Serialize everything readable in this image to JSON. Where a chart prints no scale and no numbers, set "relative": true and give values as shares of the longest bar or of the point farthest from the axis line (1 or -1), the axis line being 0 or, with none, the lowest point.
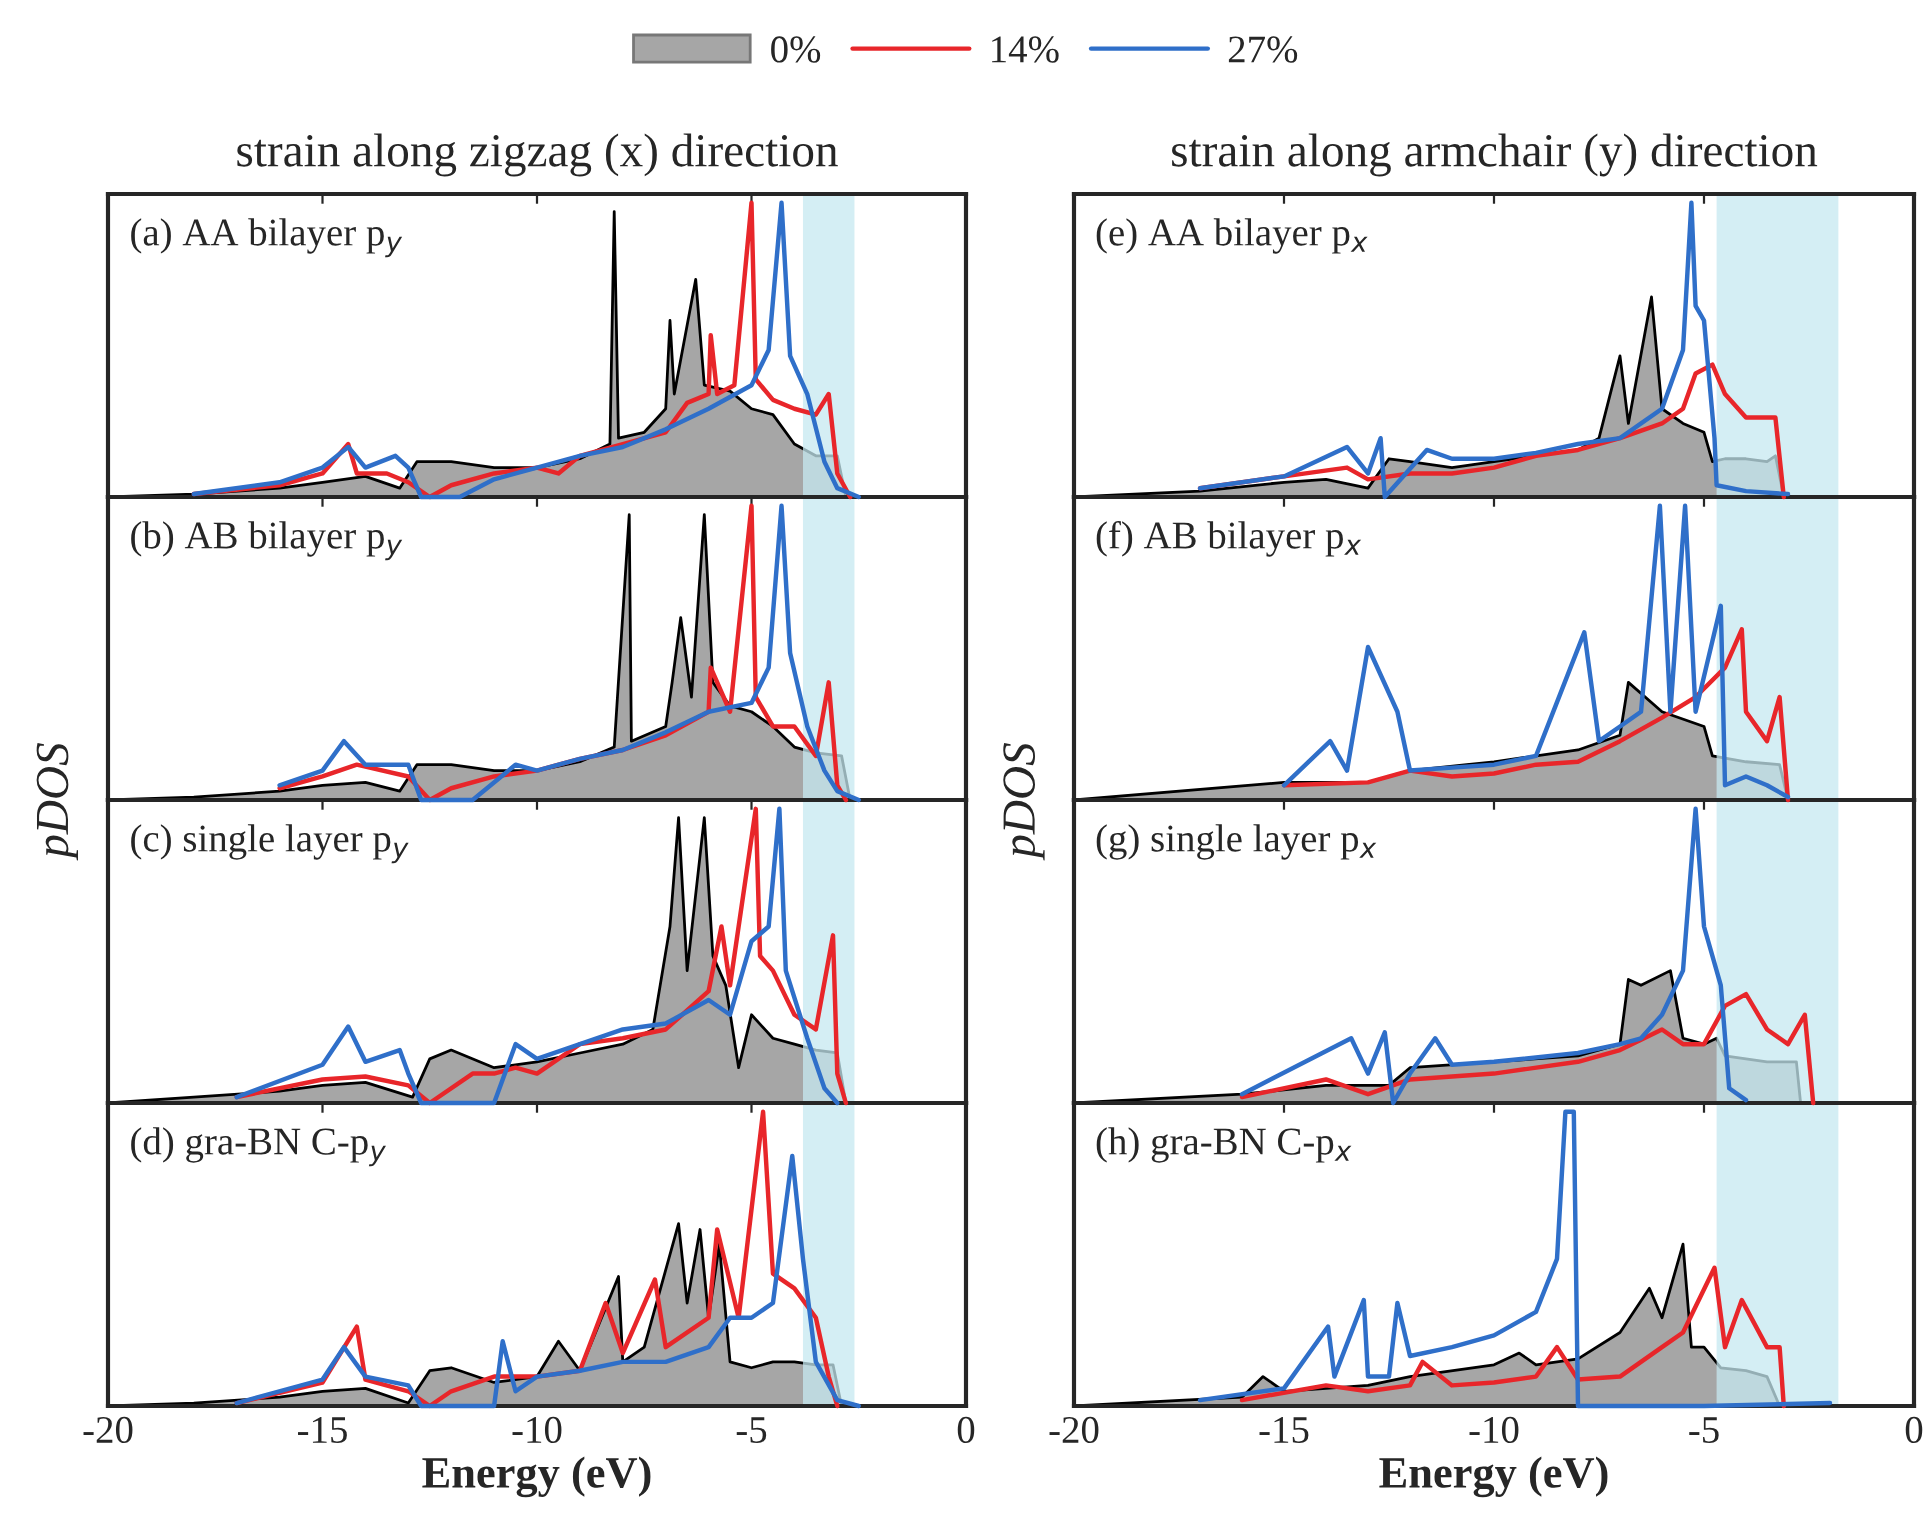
{
  "chart_data": [
    {
      "type": "line",
      "relative": true,
      "title": "strain along zigzag (x) direction",
      "annotations": [
        "(a) AA bilayer p$_{y}$"
      ],
      "xlim": [
        -20,
        0
      ],
      "xticks": [
        -20,
        -15,
        -10,
        -5,
        0
      ],
      "tick_labels": false,
      "legend": "top",
      "bands": [
        {
          "axis": "x",
          "from": -3.8,
          "to": -2.6,
          "color": "#c5e8f0"
        }
      ],
      "series": [
        {
          "name": "0%",
          "type": "area",
          "color": "#a6a6a6",
          "x": [
            -20,
            -18,
            -16,
            -15,
            -14,
            -13.2,
            -12.8,
            -12,
            -11,
            -10,
            -9,
            -8.3,
            -8.2,
            -8.1,
            -7.5,
            -7,
            -6.9,
            -6.8,
            -6.3,
            -6.1,
            -5.5,
            -5,
            -4.5,
            -4,
            -3.5,
            -3,
            -2.8,
            0
          ],
          "values": [
            0,
            0.01,
            0.03,
            0.05,
            0.07,
            0.03,
            0.12,
            0.12,
            0.1,
            0.1,
            0.13,
            0.18,
            0.97,
            0.2,
            0.22,
            0.3,
            0.6,
            0.35,
            0.74,
            0.38,
            0.36,
            0.3,
            0.28,
            0.18,
            0.14,
            0.14,
            0,
            0
          ]
        },
        {
          "name": "14%",
          "color": "#e8262a",
          "x": [
            -18,
            -16,
            -15,
            -14.4,
            -14.2,
            -13.5,
            -13,
            -12.5,
            -12,
            -11,
            -10,
            -9.5,
            -9,
            -8,
            -7,
            -6.5,
            -6,
            -5.95,
            -5.8,
            -5.4,
            -5,
            -4.9,
            -4.5,
            -4,
            -3.5,
            -3.2,
            -3,
            -2.7
          ],
          "values": [
            0.01,
            0.04,
            0.08,
            0.18,
            0.08,
            0.08,
            0.05,
            0,
            0.04,
            0.08,
            0.1,
            0.08,
            0.14,
            0.18,
            0.22,
            0.32,
            0.35,
            0.55,
            0.35,
            0.38,
            1.0,
            0.4,
            0.33,
            0.3,
            0.28,
            0.35,
            0.08,
            0
          ]
        },
        {
          "name": "27%",
          "color": "#2f6fc9",
          "x": [
            -18,
            -16,
            -15,
            -14.4,
            -14,
            -13.3,
            -13,
            -12.7,
            -11.8,
            -11,
            -10,
            -9,
            -8,
            -7,
            -6,
            -5,
            -4.6,
            -4.3,
            -4.1,
            -3.7,
            -3.3,
            -3,
            -2.5
          ],
          "values": [
            0.01,
            0.05,
            0.1,
            0.17,
            0.1,
            0.14,
            0.1,
            0,
            0,
            0.06,
            0.1,
            0.14,
            0.17,
            0.23,
            0.3,
            0.38,
            0.5,
            1.0,
            0.48,
            0.35,
            0.12,
            0.03,
            0
          ]
        }
      ]
    },
    {
      "type": "line",
      "relative": true,
      "ylabel": "pDOS",
      "annotations": [
        "(b) AB bilayer p$_{y}$"
      ],
      "xlim": [
        -20,
        0
      ],
      "xticks": [
        -20,
        -15,
        -10,
        -5,
        0
      ],
      "tick_labels": false,
      "bands": [
        {
          "axis": "x",
          "from": -3.8,
          "to": -2.6,
          "color": "#c5e8f0"
        }
      ],
      "series": [
        {
          "type": "area",
          "color": "#a6a6a6",
          "x": [
            -20,
            -18,
            -16,
            -15,
            -14,
            -13.2,
            -12.8,
            -12,
            -11,
            -10,
            -9,
            -8.2,
            -7.85,
            -7.8,
            -7,
            -6.85,
            -6.65,
            -6.4,
            -6.1,
            -5.9,
            -5.5,
            -5,
            -4.5,
            -4,
            -3.5,
            -2.9,
            -2.7,
            0
          ],
          "values": [
            0,
            0.01,
            0.03,
            0.05,
            0.06,
            0.03,
            0.12,
            0.12,
            0.1,
            0.1,
            0.13,
            0.18,
            0.97,
            0.2,
            0.25,
            0.4,
            0.62,
            0.35,
            0.97,
            0.4,
            0.32,
            0.3,
            0.25,
            0.18,
            0.16,
            0.15,
            0,
            0
          ]
        },
        {
          "color": "#e8262a",
          "x": [
            -16,
            -15,
            -14.2,
            -13,
            -12.5,
            -12,
            -11,
            -10,
            -9,
            -8,
            -7,
            -6,
            -5.95,
            -5.5,
            -5,
            -4.9,
            -4.5,
            -4,
            -3.5,
            -3.2,
            -3,
            -2.8
          ],
          "values": [
            0.04,
            0.08,
            0.12,
            0.08,
            0,
            0.04,
            0.08,
            0.1,
            0.14,
            0.17,
            0.22,
            0.3,
            0.45,
            0.3,
            1.0,
            0.35,
            0.25,
            0.25,
            0.15,
            0.4,
            0.05,
            0
          ]
        },
        {
          "color": "#2f6fc9",
          "x": [
            -16,
            -15,
            -14.5,
            -14,
            -13,
            -12.7,
            -11.5,
            -10.5,
            -10,
            -9,
            -8,
            -7,
            -6,
            -5,
            -4.6,
            -4.3,
            -4.1,
            -3.7,
            -3.3,
            -3,
            -2.5
          ],
          "values": [
            0.05,
            0.1,
            0.2,
            0.12,
            0.12,
            0,
            0,
            0.12,
            0.1,
            0.14,
            0.17,
            0.23,
            0.3,
            0.33,
            0.45,
            1.0,
            0.5,
            0.25,
            0.1,
            0.03,
            0
          ]
        }
      ]
    },
    {
      "type": "line",
      "relative": true,
      "annotations": [
        "(c) single layer p$_{y}$"
      ],
      "xlim": [
        -20,
        0
      ],
      "xticks": [
        -20,
        -15,
        -10,
        -5,
        0
      ],
      "tick_labels": false,
      "bands": [
        {
          "axis": "x",
          "from": -3.8,
          "to": -2.6,
          "color": "#c5e8f0"
        }
      ],
      "series": [
        {
          "type": "area",
          "color": "#a6a6a6",
          "x": [
            -20,
            -18,
            -16,
            -15,
            -14,
            -12.9,
            -12.5,
            -12,
            -11,
            -10,
            -9,
            -8,
            -7.3,
            -6.9,
            -6.7,
            -6.5,
            -6.1,
            -5.9,
            -5.6,
            -5.3,
            -5,
            -4.5,
            -4,
            -3.5,
            -3,
            -2.8,
            0
          ],
          "values": [
            0,
            0.02,
            0.04,
            0.06,
            0.07,
            0.02,
            0.15,
            0.18,
            0.12,
            0.14,
            0.17,
            0.2,
            0.25,
            0.6,
            0.97,
            0.45,
            0.97,
            0.5,
            0.4,
            0.12,
            0.3,
            0.22,
            0.2,
            0.18,
            0.17,
            0,
            0
          ]
        },
        {
          "color": "#e8262a",
          "x": [
            -17,
            -15,
            -14,
            -13,
            -12.5,
            -11.5,
            -11,
            -10.5,
            -10,
            -9,
            -8,
            -7,
            -6,
            -5.7,
            -5.5,
            -4.9,
            -4.8,
            -4.5,
            -4,
            -3.5,
            -3.1,
            -3,
            -2.8
          ],
          "values": [
            0.02,
            0.08,
            0.09,
            0.06,
            0,
            0.1,
            0.1,
            0.12,
            0.1,
            0.2,
            0.22,
            0.25,
            0.38,
            0.6,
            0.4,
            1.0,
            0.5,
            0.45,
            0.3,
            0.25,
            0.57,
            0.1,
            0
          ]
        },
        {
          "color": "#2f6fc9",
          "x": [
            -17,
            -15,
            -14.4,
            -14,
            -13.2,
            -13,
            -12.7,
            -11,
            -10.5,
            -10,
            -9,
            -8,
            -7,
            -6,
            -5.5,
            -5,
            -4.6,
            -4.35,
            -4.2,
            -3.7,
            -3.3,
            -3
          ],
          "values": [
            0.02,
            0.13,
            0.26,
            0.14,
            0.18,
            0.1,
            0,
            0,
            0.2,
            0.15,
            0.2,
            0.25,
            0.27,
            0.35,
            0.3,
            0.55,
            0.6,
            1.0,
            0.45,
            0.22,
            0.05,
            0
          ]
        }
      ]
    },
    {
      "type": "line",
      "relative": true,
      "xlabel": "Energy (eV)",
      "annotations": [
        "(d) gra-BN C-p$_{y}$"
      ],
      "xlim": [
        -20,
        0
      ],
      "xticks": [
        -20,
        -15,
        -10,
        -5,
        0
      ],
      "tick_labels": "x",
      "bands": [
        {
          "axis": "x",
          "from": -3.8,
          "to": -2.6,
          "color": "#c5e8f0"
        }
      ],
      "series": [
        {
          "type": "area",
          "color": "#a6a6a6",
          "x": [
            -20,
            -18,
            -16,
            -15,
            -14,
            -13,
            -12.5,
            -12,
            -11,
            -10,
            -9.5,
            -9,
            -8.1,
            -8,
            -7.5,
            -6.7,
            -6.5,
            -6.2,
            -6,
            -5.75,
            -5.5,
            -5,
            -4.5,
            -4,
            -3.5,
            -3.1,
            -2.9,
            0
          ],
          "values": [
            0,
            0.01,
            0.03,
            0.05,
            0.06,
            0.01,
            0.12,
            0.13,
            0.08,
            0.1,
            0.22,
            0.12,
            0.44,
            0.15,
            0.2,
            0.62,
            0.35,
            0.6,
            0.3,
            0.55,
            0.15,
            0.13,
            0.15,
            0.15,
            0.14,
            0.14,
            0,
            0
          ]
        },
        {
          "color": "#e8262a",
          "x": [
            -17,
            -15,
            -14.2,
            -14,
            -13,
            -12.5,
            -12,
            -11,
            -10,
            -9,
            -8.4,
            -8,
            -7.25,
            -7,
            -6,
            -5.8,
            -5.3,
            -4.73,
            -4.5,
            -4,
            -3.5,
            -3.2,
            -3
          ],
          "values": [
            0.01,
            0.08,
            0.27,
            0.09,
            0.05,
            0,
            0.05,
            0.1,
            0.1,
            0.12,
            0.35,
            0.18,
            0.43,
            0.2,
            0.3,
            0.6,
            0.3,
            1.0,
            0.45,
            0.4,
            0.3,
            0.1,
            0
          ]
        },
        {
          "color": "#2f6fc9",
          "x": [
            -17,
            -15,
            -14.5,
            -14,
            -13,
            -12.7,
            -11,
            -10.8,
            -10.5,
            -10,
            -9,
            -8,
            -7,
            -6,
            -5.5,
            -5,
            -4.5,
            -4.05,
            -3.8,
            -3.5,
            -3,
            -2.5
          ],
          "values": [
            0.01,
            0.09,
            0.2,
            0.1,
            0.07,
            0,
            0,
            0.22,
            0.05,
            0.1,
            0.12,
            0.15,
            0.15,
            0.2,
            0.3,
            0.3,
            0.35,
            0.85,
            0.5,
            0.15,
            0.02,
            0
          ]
        }
      ]
    },
    {
      "type": "line",
      "relative": true,
      "title": "strain along armchair (y) direction",
      "annotations": [
        "(e) AA bilayer p$_{x}$"
      ],
      "xlim": [
        -20,
        0
      ],
      "xticks": [
        -20,
        -15,
        -10,
        -5,
        0
      ],
      "tick_labels": false,
      "bands": [
        {
          "axis": "x",
          "from": -4.7,
          "to": -1.8,
          "color": "#c5e8f0"
        }
      ],
      "series": [
        {
          "type": "area",
          "color": "#a6a6a6",
          "x": [
            -20,
            -17,
            -15,
            -14,
            -13,
            -12.5,
            -12,
            -11,
            -10,
            -9,
            -8,
            -7.5,
            -7,
            -6.8,
            -6.25,
            -6,
            -5.5,
            -5,
            -4.8,
            -4.5,
            -4,
            -3.5,
            -3.3,
            -3.1,
            0
          ],
          "values": [
            0,
            0.02,
            0.05,
            0.06,
            0.03,
            0.13,
            0.12,
            0.1,
            0.12,
            0.14,
            0.16,
            0.2,
            0.48,
            0.25,
            0.68,
            0.3,
            0.25,
            0.22,
            0.12,
            0.13,
            0.13,
            0.12,
            0.14,
            0,
            0
          ]
        },
        {
          "color": "#e8262a",
          "x": [
            -17,
            -15,
            -13.5,
            -13,
            -12,
            -11,
            -10,
            -9,
            -8,
            -7,
            -6,
            -5.5,
            -5.2,
            -4.8,
            -4.5,
            -4,
            -3.5,
            -3.3,
            -3.1
          ],
          "values": [
            0.03,
            0.07,
            0.1,
            0.06,
            0.08,
            0.08,
            0.1,
            0.14,
            0.16,
            0.2,
            0.25,
            0.3,
            0.42,
            0.45,
            0.35,
            0.27,
            0.27,
            0.27,
            0
          ]
        },
        {
          "color": "#2f6fc9",
          "x": [
            -17,
            -15,
            -13.5,
            -13,
            -12.7,
            -12.6,
            -11.6,
            -11,
            -10,
            -9,
            -8,
            -7,
            -6,
            -5.5,
            -5.3,
            -5.2,
            -5,
            -4.75,
            -4.7,
            -4,
            -3
          ],
          "values": [
            0.03,
            0.07,
            0.17,
            0.08,
            0.2,
            0,
            0.16,
            0.13,
            0.13,
            0.15,
            0.18,
            0.2,
            0.3,
            0.5,
            1.0,
            0.65,
            0.6,
            0.2,
            0.04,
            0.02,
            0.01
          ]
        }
      ]
    },
    {
      "type": "line",
      "relative": true,
      "ylabel": "pDOS",
      "annotations": [
        "(f) AB bilayer p$_{x}$"
      ],
      "xlim": [
        -20,
        0
      ],
      "xticks": [
        -20,
        -15,
        -10,
        -5,
        0
      ],
      "tick_labels": false,
      "bands": [
        {
          "axis": "x",
          "from": -4.7,
          "to": -1.8,
          "color": "#c5e8f0"
        }
      ],
      "series": [
        {
          "type": "area",
          "color": "#a6a6a6",
          "x": [
            -20,
            -15,
            -13,
            -12,
            -10,
            -8,
            -7,
            -6.8,
            -6,
            -5,
            -4.8,
            -4,
            -3.2,
            -3,
            0
          ],
          "values": [
            0,
            0.06,
            0.06,
            0.1,
            0.13,
            0.17,
            0.22,
            0.4,
            0.3,
            0.25,
            0.15,
            0.13,
            0.12,
            0,
            0
          ]
        },
        {
          "color": "#e8262a",
          "x": [
            -15,
            -13,
            -12,
            -11,
            -10,
            -9,
            -8,
            -7,
            -6,
            -5.2,
            -4.5,
            -4.1,
            -4,
            -3.5,
            -3.2,
            -3
          ],
          "values": [
            0.05,
            0.06,
            0.1,
            0.08,
            0.09,
            0.12,
            0.13,
            0.2,
            0.28,
            0.35,
            0.45,
            0.58,
            0.3,
            0.2,
            0.35,
            0
          ]
        },
        {
          "color": "#2f6fc9",
          "x": [
            -15,
            -13.9,
            -13.5,
            -13,
            -12.3,
            -12,
            -11,
            -10,
            -9,
            -7.85,
            -7.5,
            -7,
            -6.5,
            -6.05,
            -5.8,
            -5.45,
            -5.2,
            -4.6,
            -4.5,
            -4,
            -3.5,
            -3
          ],
          "values": [
            0.05,
            0.2,
            0.1,
            0.52,
            0.3,
            0.1,
            0.11,
            0.12,
            0.15,
            0.57,
            0.2,
            0.25,
            0.3,
            1.0,
            0.3,
            1.0,
            0.3,
            0.66,
            0.05,
            0.08,
            0.05,
            0.01
          ]
        }
      ]
    },
    {
      "type": "line",
      "relative": true,
      "annotations": [
        "(g) single layer p$_{x}$"
      ],
      "xlim": [
        -20,
        0
      ],
      "xticks": [
        -20,
        -15,
        -10,
        -5,
        0
      ],
      "tick_labels": false,
      "bands": [
        {
          "axis": "x",
          "from": -4.7,
          "to": -1.8,
          "color": "#c5e8f0"
        }
      ],
      "series": [
        {
          "type": "area",
          "color": "#a6a6a6",
          "x": [
            -20,
            -16,
            -14,
            -12.5,
            -12,
            -10,
            -8,
            -7,
            -6.8,
            -6.5,
            -5.8,
            -5.5,
            -5,
            -4.7,
            -4.5,
            -4,
            -3.5,
            -2.8,
            -2.7,
            0
          ],
          "values": [
            0,
            0.03,
            0.06,
            0.06,
            0.12,
            0.14,
            0.16,
            0.2,
            0.42,
            0.4,
            0.45,
            0.22,
            0.2,
            0.22,
            0.16,
            0.15,
            0.14,
            0.14,
            0,
            0
          ]
        },
        {
          "color": "#e8262a",
          "x": [
            -16,
            -14,
            -13,
            -12,
            -10,
            -8,
            -7,
            -6,
            -5.5,
            -5,
            -4.5,
            -4,
            -3.5,
            -3,
            -2.6,
            -2.4
          ],
          "values": [
            0.02,
            0.08,
            0.03,
            0.08,
            0.1,
            0.14,
            0.18,
            0.25,
            0.2,
            0.2,
            0.33,
            0.37,
            0.25,
            0.2,
            0.3,
            0
          ]
        },
        {
          "color": "#2f6fc9",
          "x": [
            -16,
            -13.4,
            -13,
            -12.6,
            -12.4,
            -12,
            -11.4,
            -11,
            -10,
            -8,
            -7,
            -6.5,
            -6,
            -5.5,
            -5.2,
            -5,
            -4.6,
            -4.4,
            -4
          ],
          "values": [
            0.03,
            0.22,
            0.1,
            0.24,
            0,
            0.1,
            0.22,
            0.13,
            0.14,
            0.17,
            0.2,
            0.22,
            0.3,
            0.45,
            1.0,
            0.6,
            0.4,
            0.05,
            0.01
          ]
        }
      ]
    },
    {
      "type": "line",
      "relative": true,
      "xlabel": "Energy (eV)",
      "annotations": [
        "(h) gra-BN C-p$_{x}$"
      ],
      "xlim": [
        -20,
        0
      ],
      "xticks": [
        -20,
        -15,
        -10,
        -5,
        0
      ],
      "tick_labels": "x",
      "bands": [
        {
          "axis": "x",
          "from": -4.7,
          "to": -1.8,
          "color": "#c5e8f0"
        }
      ],
      "series": [
        {
          "type": "area",
          "color": "#a6a6a6",
          "x": [
            -20,
            -16,
            -15.5,
            -15,
            -14,
            -13,
            -12,
            -10,
            -9.4,
            -9,
            -8,
            -7,
            -6.3,
            -6,
            -5.5,
            -5.3,
            -5,
            -4.6,
            -4,
            -3.5,
            -3.2,
            0
          ],
          "values": [
            0,
            0.03,
            0.1,
            0.05,
            0.06,
            0.07,
            0.1,
            0.14,
            0.18,
            0.14,
            0.16,
            0.25,
            0.4,
            0.3,
            0.55,
            0.2,
            0.2,
            0.13,
            0.12,
            0.1,
            0,
            0
          ]
        },
        {
          "color": "#e8262a",
          "x": [
            -16,
            -14,
            -13,
            -12,
            -11.7,
            -11,
            -10,
            -9,
            -8.5,
            -8,
            -7,
            -6,
            -5.5,
            -4.75,
            -4.5,
            -4.1,
            -3.5,
            -3.2,
            -3.1
          ],
          "values": [
            0.02,
            0.07,
            0.05,
            0.07,
            0.15,
            0.07,
            0.08,
            0.1,
            0.2,
            0.09,
            0.1,
            0.2,
            0.25,
            0.47,
            0.2,
            0.36,
            0.2,
            0.2,
            0
          ]
        },
        {
          "color": "#2f6fc9",
          "x": [
            -17,
            -15,
            -13.95,
            -13.8,
            -13.1,
            -13,
            -12.5,
            -12.3,
            -12,
            -11,
            -10,
            -9,
            -8.5,
            -8.3,
            -8.1,
            -8.0,
            -5,
            -2
          ],
          "values": [
            0.02,
            0.06,
            0.27,
            0.1,
            0.36,
            0.1,
            0.1,
            0.35,
            0.17,
            0.2,
            0.24,
            0.32,
            0.5,
            1.0,
            1.0,
            0,
            0,
            0.01
          ]
        }
      ]
    }
  ]
}
